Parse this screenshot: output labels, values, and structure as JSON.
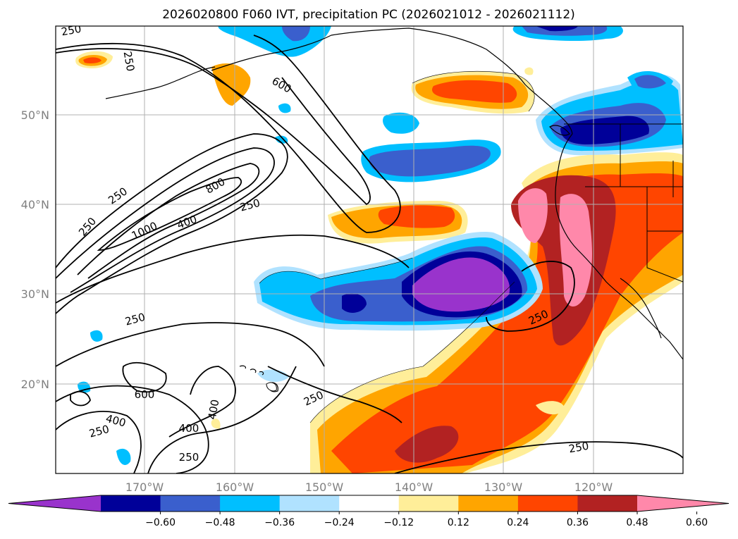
{
  "title": "2026020800 F060 IVT, precipitation PC (2026021012 - 2026021112)",
  "latitude_labels": [
    "50°N",
    "40°N",
    "30°N",
    "20°N"
  ],
  "longitude_labels": [
    "170°W",
    "160°W",
    "150°W",
    "140°W",
    "130°W",
    "120°W"
  ],
  "colorbar": {
    "colors": [
      "#9933cc",
      "#000099",
      "#3a5fcd",
      "#00bfff",
      "#b0e2ff",
      "#ffffff",
      "#ffee99",
      "#ffa500",
      "#ff4500",
      "#b22222",
      "#ff88aa"
    ],
    "tick_labels": [
      "−0.60",
      "−0.48",
      "−0.36",
      "−0.24",
      "−0.12",
      "0.12",
      "0.24",
      "0.36",
      "0.48",
      "0.60"
    ]
  },
  "contour_labels": [
    "250",
    "250",
    "250",
    "250",
    "600",
    "250",
    "800",
    "1000",
    "400",
    "250",
    "250",
    "250",
    "600",
    "400",
    "400",
    "400",
    "250",
    "250",
    "250",
    "250"
  ]
}
